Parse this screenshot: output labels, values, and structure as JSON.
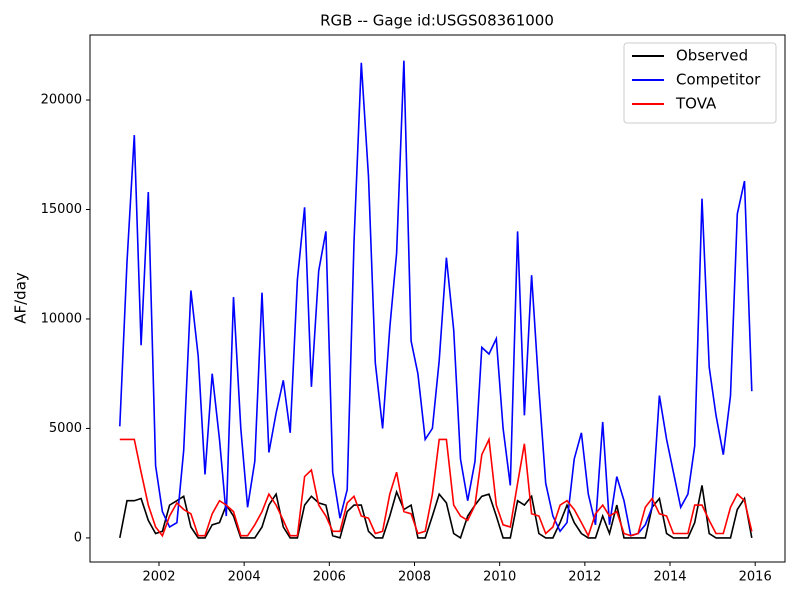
{
  "chart_data": {
    "type": "line",
    "title": "RGB -- Gage id:USGS08361000",
    "y_label": "AF/day",
    "x": [
      2001.08,
      2001.25,
      2001.42,
      2001.58,
      2001.75,
      2001.92,
      2002.08,
      2002.25,
      2002.42,
      2002.58,
      2002.75,
      2002.92,
      2003.08,
      2003.25,
      2003.42,
      2003.58,
      2003.75,
      2003.92,
      2004.08,
      2004.25,
      2004.42,
      2004.58,
      2004.75,
      2004.92,
      2005.08,
      2005.25,
      2005.42,
      2005.58,
      2005.75,
      2005.92,
      2006.08,
      2006.25,
      2006.42,
      2006.58,
      2006.75,
      2006.92,
      2007.08,
      2007.25,
      2007.42,
      2007.58,
      2007.75,
      2007.92,
      2008.08,
      2008.25,
      2008.42,
      2008.58,
      2008.75,
      2008.92,
      2009.08,
      2009.25,
      2009.42,
      2009.58,
      2009.75,
      2009.92,
      2010.08,
      2010.25,
      2010.42,
      2010.58,
      2010.75,
      2010.92,
      2011.08,
      2011.25,
      2011.42,
      2011.58,
      2011.75,
      2011.92,
      2012.08,
      2012.25,
      2012.42,
      2012.58,
      2012.75,
      2012.92,
      2013.08,
      2013.25,
      2013.42,
      2013.58,
      2013.75,
      2013.92,
      2014.08,
      2014.25,
      2014.42,
      2014.58,
      2014.75,
      2014.92,
      2015.08,
      2015.25,
      2015.42,
      2015.58,
      2015.75,
      2015.92
    ],
    "series": [
      {
        "name": "Observed",
        "color": "#000000",
        "values": [
          0,
          1700,
          1700,
          1800,
          800,
          200,
          300,
          1500,
          1700,
          1900,
          500,
          0,
          0,
          600,
          700,
          1500,
          1000,
          0,
          0,
          0,
          500,
          1500,
          2000,
          500,
          0,
          0,
          1500,
          1900,
          1600,
          1500,
          100,
          0,
          1200,
          1500,
          1500,
          300,
          0,
          0,
          1000,
          2100,
          1300,
          1500,
          0,
          0,
          1000,
          2000,
          1600,
          200,
          0,
          1000,
          1500,
          1900,
          2000,
          1000,
          0,
          0,
          1700,
          1500,
          1900,
          200,
          0,
          0,
          700,
          1500,
          700,
          200,
          0,
          0,
          1000,
          200,
          1500,
          0,
          0,
          0,
          0,
          1400,
          1800,
          200,
          0,
          0,
          0,
          700,
          2400,
          200,
          0,
          0,
          0,
          1300,
          1800,
          0
        ]
      },
      {
        "name": "Competitor",
        "color": "#0000ff",
        "values": [
          5100,
          12600,
          18400,
          8800,
          15800,
          3300,
          1200,
          500,
          700,
          4000,
          11300,
          8300,
          2900,
          7500,
          4500,
          1000,
          11000,
          5000,
          1400,
          3500,
          11200,
          3900,
          5700,
          7200,
          4800,
          11800,
          15100,
          6900,
          12200,
          14000,
          3000,
          900,
          2200,
          13500,
          21700,
          16500,
          8000,
          5000,
          9600,
          13000,
          21800,
          9000,
          7500,
          4500,
          5000,
          8100,
          12800,
          9500,
          3600,
          1700,
          3500,
          8700,
          8400,
          9100,
          5000,
          2400,
          14000,
          5600,
          12000,
          6800,
          2500,
          1000,
          300,
          700,
          3600,
          4800,
          2000,
          600,
          5300,
          600,
          2800,
          1700,
          100,
          200,
          600,
          1400,
          6500,
          4500,
          3000,
          1400,
          2000,
          4200,
          15500,
          7800,
          5600,
          3800,
          6500,
          14800,
          16300,
          6700
        ]
      },
      {
        "name": "TOVA",
        "color": "#ff0000",
        "values": [
          4500,
          4500,
          4500,
          3000,
          1500,
          500,
          100,
          1000,
          1600,
          1300,
          1100,
          100,
          100,
          1100,
          1700,
          1500,
          1200,
          100,
          100,
          600,
          1200,
          2000,
          1500,
          800,
          100,
          100,
          2800,
          3100,
          1500,
          1000,
          300,
          300,
          1600,
          1900,
          1000,
          900,
          200,
          300,
          2000,
          3000,
          1200,
          1100,
          200,
          300,
          2000,
          4500,
          4500,
          1500,
          1000,
          800,
          1500,
          3800,
          4500,
          1500,
          600,
          500,
          2500,
          4300,
          1100,
          1000,
          200,
          500,
          1500,
          1700,
          1300,
          700,
          100,
          1100,
          1500,
          1000,
          1200,
          200,
          100,
          200,
          1400,
          1800,
          1100,
          1000,
          200,
          200,
          200,
          1500,
          1500,
          800,
          200,
          200,
          1400,
          2000,
          1700,
          300
        ]
      }
    ],
    "xlim": [
      2000.38,
      2016.7
    ],
    "xticks": [
      2002,
      2004,
      2006,
      2008,
      2010,
      2012,
      2014,
      2016
    ],
    "ylim": [
      -1100,
      22970
    ],
    "yticks": [
      0,
      5000,
      10000,
      15000,
      20000
    ],
    "legend": "upper right"
  }
}
